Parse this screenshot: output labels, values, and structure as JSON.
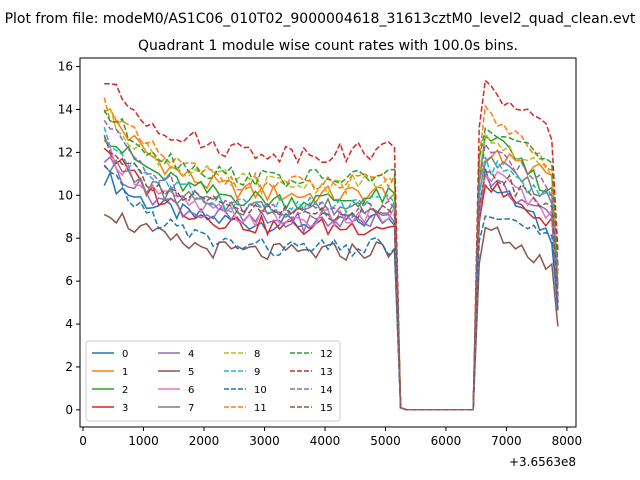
{
  "chart_data": {
    "type": "line",
    "suptitle": "Plot from file: modeM0/AS1C06_010T02_9000004618_31613cztM0_level2_quad_clean.evt",
    "title": "Quadrant 1 module wise count rates with 100.0s bins.",
    "xlabel": "",
    "ylabel": "",
    "x_offset_label": "+3.6563e8",
    "xlim": [
      -50,
      8150
    ],
    "ylim": [
      -0.8,
      16.4
    ],
    "xticks": [
      0,
      1000,
      2000,
      3000,
      4000,
      5000,
      6000,
      7000,
      8000
    ],
    "yticks": [
      0,
      2,
      4,
      6,
      8,
      10,
      12,
      14,
      16
    ],
    "series": [
      {
        "name": "0",
        "color": "#1f77b4",
        "dashed": false,
        "start": 10.9,
        "end": 8.9,
        "post": 10.9,
        "late": 8.1
      },
      {
        "name": "1",
        "color": "#ff7f0e",
        "dashed": false,
        "start": 14.2,
        "end": 10.1,
        "post": 12.0,
        "late": 10.9
      },
      {
        "name": "2",
        "color": "#2ca02c",
        "dashed": false,
        "start": 13.0,
        "end": 9.9,
        "post": 12.9,
        "late": 10.1
      },
      {
        "name": "3",
        "color": "#d62728",
        "dashed": false,
        "start": 12.4,
        "end": 8.6,
        "post": 10.6,
        "late": 8.6
      },
      {
        "name": "4",
        "color": "#9467bd",
        "dashed": false,
        "start": 11.8,
        "end": 8.9,
        "post": 10.9,
        "late": 8.8
      },
      {
        "name": "5",
        "color": "#8c564b",
        "dashed": false,
        "start": 9.5,
        "end": 7.5,
        "post": 8.5,
        "late": 6.7
      },
      {
        "name": "6",
        "color": "#e377c2",
        "dashed": false,
        "start": 12.3,
        "end": 9.0,
        "post": 11.2,
        "late": 9.1
      },
      {
        "name": "7",
        "color": "#7f7f7f",
        "dashed": false,
        "start": 11.7,
        "end": 9.6,
        "post": 11.9,
        "late": 9.9
      },
      {
        "name": "8",
        "color": "#bcbd22",
        "dashed": true,
        "start": 14.0,
        "end": 10.6,
        "post": 12.8,
        "late": 10.9
      },
      {
        "name": "9",
        "color": "#17becf",
        "dashed": true,
        "start": 12.8,
        "end": 9.6,
        "post": 11.5,
        "late": 9.8
      },
      {
        "name": "10",
        "color": "#1f77b4",
        "dashed": true,
        "start": 11.2,
        "end": 7.6,
        "post": 9.4,
        "late": 7.9
      },
      {
        "name": "11",
        "color": "#ff7f0e",
        "dashed": true,
        "start": 14.3,
        "end": 10.6,
        "post": 13.8,
        "late": 11.2
      },
      {
        "name": "12",
        "color": "#2ca02c",
        "dashed": true,
        "start": 14.0,
        "end": 10.9,
        "post": 13.4,
        "late": 11.6
      },
      {
        "name": "13",
        "color": "#d62728",
        "dashed": true,
        "start": 15.4,
        "end": 12.1,
        "post": 15.1,
        "late": 12.8
      },
      {
        "name": "14",
        "color": "#9467bd",
        "dashed": true,
        "start": 13.5,
        "end": 9.4,
        "post": 12.6,
        "late": 10.1
      },
      {
        "name": "15",
        "color": "#8c564b",
        "dashed": true,
        "start": 12.7,
        "end": 9.3,
        "post": 11.3,
        "late": 9.2
      }
    ],
    "segments": {
      "active1": [
        350,
        5150
      ],
      "gap": [
        5250,
        6450
      ],
      "active2": [
        6550,
        7850
      ],
      "step": 100
    },
    "legend_placement": "lower-left"
  }
}
